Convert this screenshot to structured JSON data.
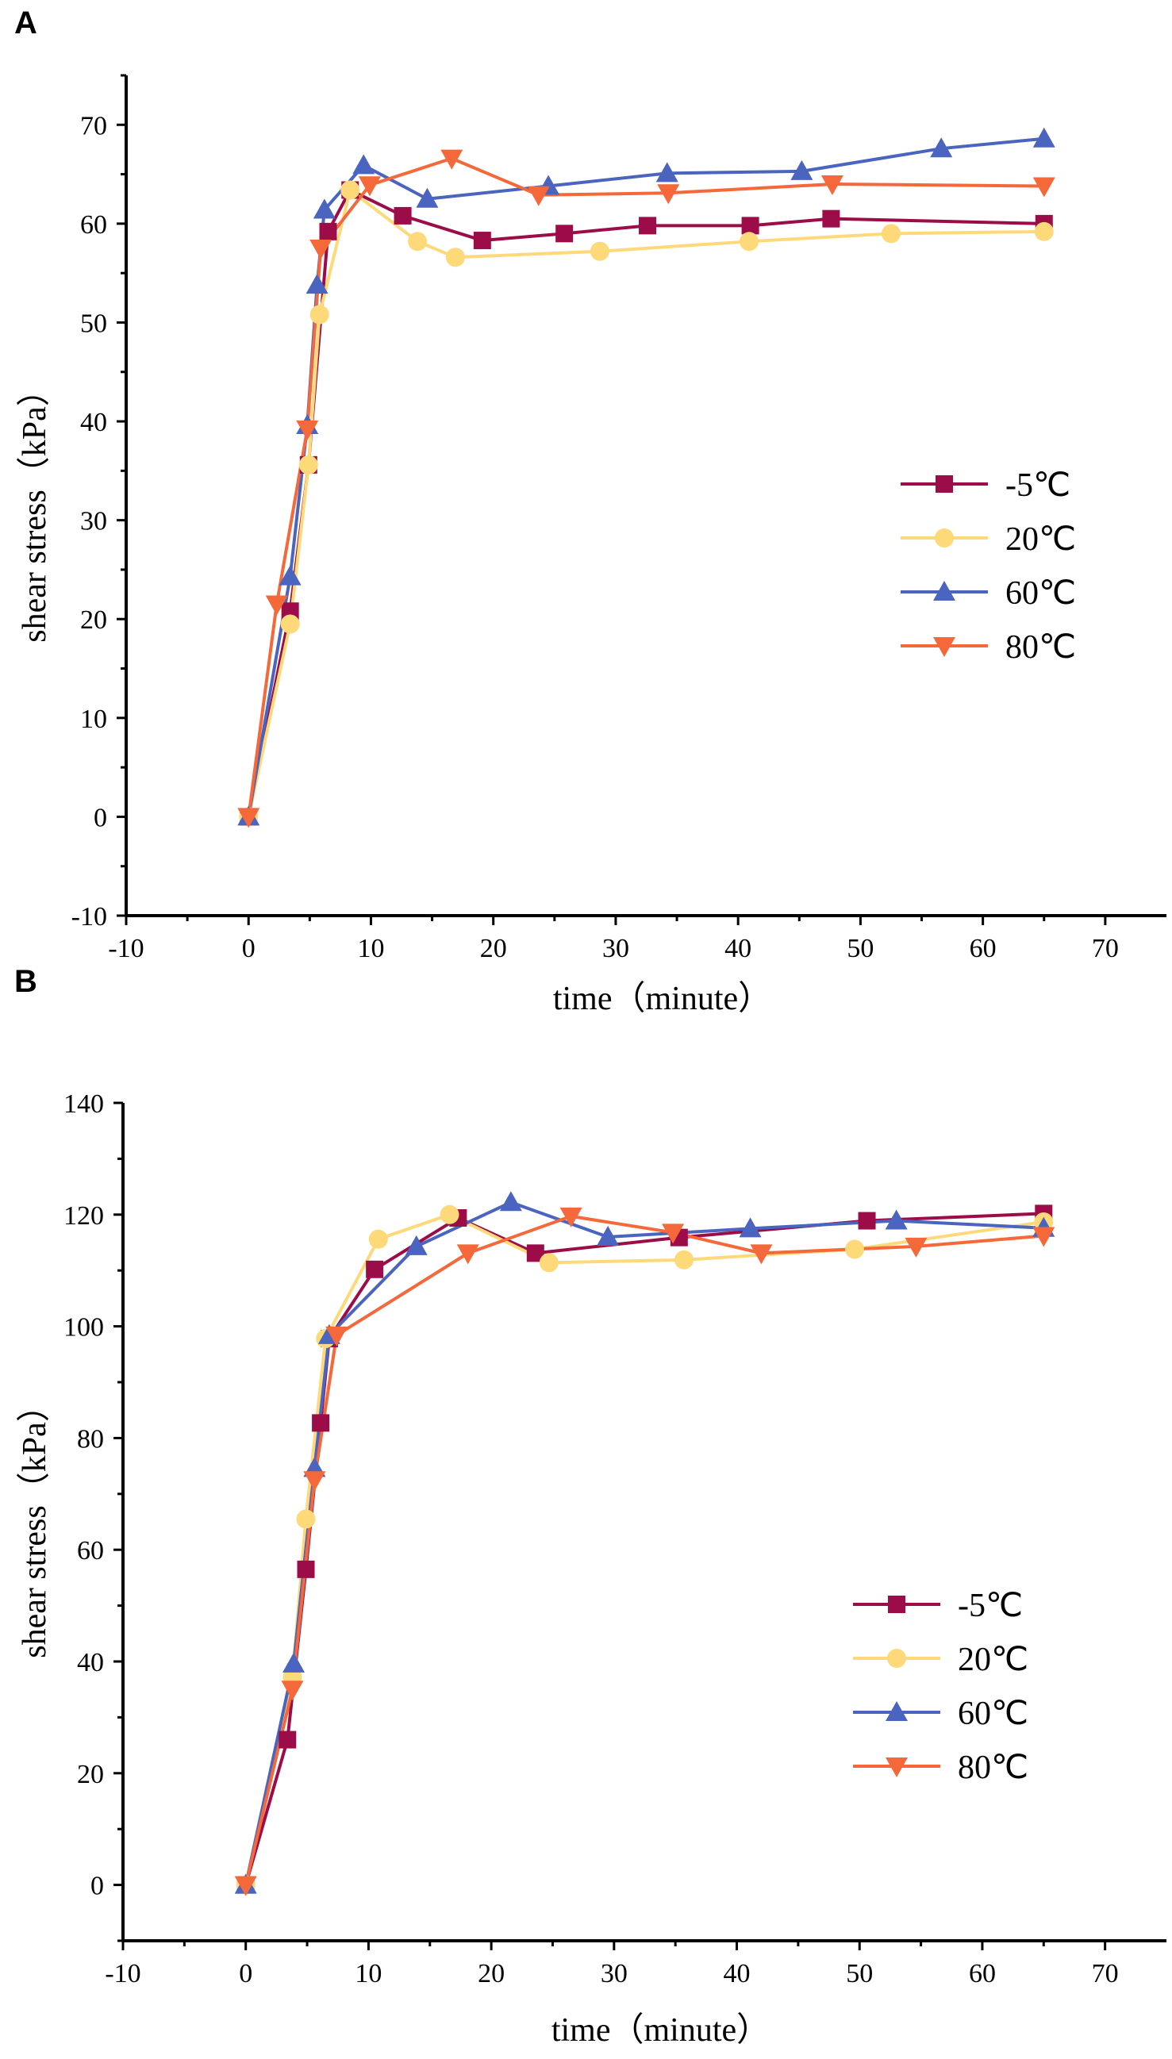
{
  "colors": {
    "m5C": "#9b0c48",
    "20C": "#fdd979",
    "60C": "#4a64bf",
    "80C": "#f4683a"
  },
  "chart_data": [
    {
      "panel": "A",
      "type": "line",
      "title": "",
      "xlabel": "time（minute）",
      "ylabel": "shear stress（kPa）",
      "xlim": [
        -10,
        75
      ],
      "ylim": [
        -10,
        75
      ],
      "xticks": [
        -10,
        0,
        10,
        20,
        30,
        40,
        50,
        60,
        70
      ],
      "yticks": [
        -10,
        0,
        10,
        20,
        30,
        40,
        50,
        60,
        70
      ],
      "legend_position": "right-middle",
      "series": [
        {
          "name": "-5℃",
          "color_key": "m5C",
          "marker": "square",
          "x": [
            0,
            3.4,
            4.9,
            6.5,
            8.3,
            12.6,
            19.1,
            25.8,
            32.6,
            41.0,
            47.6,
            65.0
          ],
          "y": [
            0,
            20.8,
            35.6,
            59.2,
            63.4,
            60.8,
            58.3,
            59.0,
            59.8,
            59.8,
            60.5,
            60.0
          ]
        },
        {
          "name": "20℃",
          "color_key": "20C",
          "marker": "circle",
          "x": [
            0,
            3.4,
            4.9,
            5.8,
            8.3,
            13.8,
            16.9,
            28.7,
            40.9,
            52.5,
            65.0
          ],
          "y": [
            0,
            19.5,
            35.6,
            50.8,
            63.4,
            58.2,
            56.6,
            57.2,
            58.2,
            59.0,
            59.2
          ]
        },
        {
          "name": "60℃",
          "color_key": "60C",
          "marker": "triangle-up",
          "x": [
            0,
            3.4,
            4.8,
            5.6,
            6.2,
            9.4,
            14.6,
            24.5,
            34.2,
            45.2,
            56.6,
            65.0
          ],
          "y": [
            0,
            24.3,
            39.6,
            53.8,
            61.4,
            65.9,
            62.5,
            63.8,
            65.1,
            65.3,
            67.6,
            68.6
          ]
        },
        {
          "name": "80℃",
          "color_key": "80C",
          "marker": "triangle-down",
          "x": [
            0,
            2.3,
            4.8,
            5.9,
            9.9,
            16.6,
            23.7,
            34.3,
            47.7,
            65.0
          ],
          "y": [
            0,
            21.5,
            39.2,
            57.5,
            63.9,
            66.6,
            62.9,
            63.1,
            64.0,
            63.8
          ]
        }
      ]
    },
    {
      "panel": "B",
      "type": "line",
      "title": "",
      "xlabel": "time（minute）",
      "ylabel": "shear stress（kPa）",
      "xlim": [
        -10,
        75
      ],
      "ylim": [
        -10,
        140
      ],
      "xticks": [
        -10,
        0,
        10,
        20,
        30,
        40,
        50,
        60,
        70
      ],
      "yticks": [
        0,
        20,
        40,
        60,
        80,
        100,
        120,
        140
      ],
      "legend_position": "lower-right",
      "series": [
        {
          "name": "-5℃",
          "color_key": "m5C",
          "marker": "square",
          "x": [
            0,
            3.4,
            4.9,
            6.1,
            6.8,
            10.5,
            17.3,
            23.6,
            35.3,
            50.6,
            65.0
          ],
          "y": [
            0,
            26,
            56.5,
            82.7,
            97.8,
            110.2,
            119.4,
            113.1,
            115.9,
            118.9,
            120.2
          ]
        },
        {
          "name": "20℃",
          "color_key": "20C",
          "marker": "circle",
          "x": [
            0,
            3.8,
            4.9,
            6.5,
            10.8,
            16.6,
            24.7,
            35.7,
            49.6,
            65.0
          ],
          "y": [
            0,
            37.2,
            65.5,
            97.8,
            115.6,
            120.0,
            111.4,
            111.9,
            113.8,
            118.7
          ]
        },
        {
          "name": "60℃",
          "color_key": "60C",
          "marker": "triangle-up",
          "x": [
            0,
            3.9,
            5.6,
            6.8,
            13.9,
            21.6,
            29.5,
            41.1,
            53.0,
            65.0
          ],
          "y": [
            0,
            39.6,
            74.6,
            98.4,
            114.3,
            122.2,
            116.0,
            117.5,
            118.9,
            117.6
          ]
        },
        {
          "name": "80℃",
          "color_key": "80C",
          "marker": "triangle-down",
          "x": [
            0,
            3.8,
            5.6,
            7.4,
            18.1,
            26.5,
            34.8,
            42.0,
            54.6,
            65.0
          ],
          "y": [
            0,
            35.0,
            72.5,
            98.4,
            113.1,
            119.7,
            116.8,
            113.1,
            114.3,
            116.2
          ]
        }
      ]
    }
  ]
}
